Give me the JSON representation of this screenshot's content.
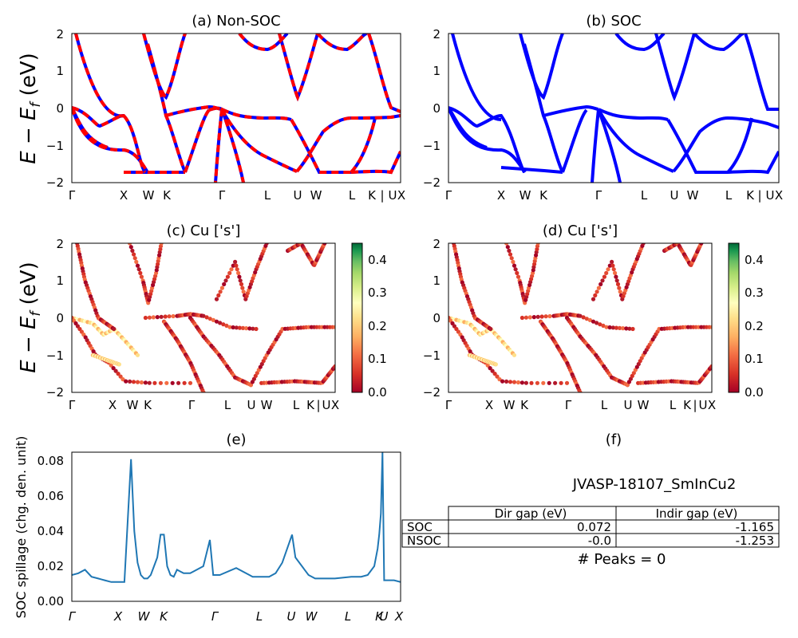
{
  "shared": {
    "kpath_labels": [
      "Γ",
      "X",
      "W",
      "K",
      "Γ",
      "L",
      "U",
      "W",
      "L",
      "K",
      "|",
      "U",
      "X"
    ],
    "energy_ylabel_text": "E − E",
    "energy_ylabel_sub": "f",
    "energy_ylabel_unit": " (eV)",
    "ylim": [
      -2,
      2
    ],
    "yticks": [
      "2",
      "1",
      "0",
      "−1",
      "−2"
    ]
  },
  "chart_data": [
    {
      "type": "line",
      "panel": "a",
      "title": "(a) Non-SOC",
      "ylabel": "E − E_f (eV)",
      "ylim": [
        -2,
        2
      ],
      "series": [
        {
          "name": "",
          "color": "#0000ff",
          "style": "solid"
        },
        {
          "name": "",
          "color": "#ff0000",
          "style": "dashed"
        }
      ]
    },
    {
      "type": "line",
      "panel": "b",
      "title": "(b) SOC",
      "ylim": [
        -2,
        2
      ],
      "series": [
        {
          "name": "",
          "color": "#0000ff"
        }
      ]
    },
    {
      "type": "scatter",
      "panel": "c",
      "title": "(c)  Cu ['s']",
      "ylabel": "E − E_f (eV)",
      "ylim": [
        -2,
        2
      ],
      "colorbar": {
        "colormap": "RdYlGn",
        "min": 0.0,
        "max": 0.45,
        "ticks": [
          "0.0",
          "0.1",
          "0.2",
          "0.3",
          "0.4"
        ]
      }
    },
    {
      "type": "scatter",
      "panel": "d",
      "title": "(d) Cu ['s']",
      "ylim": [
        -2,
        2
      ],
      "colorbar": {
        "colormap": "RdYlGn",
        "min": 0.0,
        "max": 0.45,
        "ticks": [
          "0.0",
          "0.1",
          "0.2",
          "0.3",
          "0.4"
        ]
      }
    },
    {
      "type": "line",
      "panel": "e",
      "title": "(e)",
      "ylabel": "SOC spillage (chg. den. unit)",
      "ylim": [
        0,
        0.085
      ],
      "yticks": [
        "0.00",
        "0.02",
        "0.04",
        "0.06",
        "0.08"
      ],
      "xtick_labels": [
        "Γ",
        "X",
        "W",
        "K",
        "Γ",
        "L",
        "U",
        "W",
        "L",
        "K",
        "U",
        "X"
      ],
      "series": [
        {
          "name": "",
          "color": "#1f77b4",
          "x": [
            0,
            0.02,
            0.04,
            0.06,
            0.08,
            0.1,
            0.12,
            0.14,
            0.16,
            0.18,
            0.19,
            0.2,
            0.21,
            0.22,
            0.23,
            0.24,
            0.25,
            0.26,
            0.27,
            0.28,
            0.29,
            0.3,
            0.31,
            0.32,
            0.33,
            0.34,
            0.36,
            0.37,
            0.38,
            0.4,
            0.42,
            0.44,
            0.43,
            0.45,
            0.5,
            0.54,
            0.55,
            0.555,
            0.56,
            0.57,
            0.6,
            0.62,
            0.64,
            0.67,
            0.68,
            0.72,
            0.74,
            0.745,
            0.75,
            0.76,
            0.8,
            0.85,
            0.88,
            0.9,
            0.92,
            0.93,
            0.935,
            0.94,
            0.945,
            0.95,
            0.98,
            1.0
          ],
          "y": [
            0.015,
            0.016,
            0.018,
            0.014,
            0.013,
            0.012,
            0.011,
            0.011,
            0.011,
            0.081,
            0.04,
            0.022,
            0.015,
            0.013,
            0.013,
            0.015,
            0.02,
            0.025,
            0.038,
            0.038,
            0.02,
            0.015,
            0.014,
            0.018,
            0.017,
            0.016,
            0.016,
            0.017,
            0.018,
            0.02,
            0.035,
            0.015,
            0.015,
            0.015,
            0.019,
            0.015,
            0.014,
            0.014,
            0.014,
            0.014,
            0.014,
            0.016,
            0.022,
            0.038,
            0.025,
            0.015,
            0.013,
            0.013,
            0.013,
            0.013,
            0.013,
            0.014,
            0.014,
            0.015,
            0.02,
            0.03,
            0.038,
            0.05,
            0.085,
            0.012,
            0.012,
            0.011
          ]
        }
      ]
    },
    {
      "type": "table",
      "panel": "f",
      "title": "(f)",
      "caption": "JVASP-18107_SmInCu2",
      "columns": [
        "Dir gap (eV)",
        "Indir gap (eV)"
      ],
      "rows": [
        {
          "label": "SOC",
          "values": [
            "0.072",
            "-1.165"
          ]
        },
        {
          "label": "NSOC",
          "values": [
            "-0.0",
            "-1.253"
          ]
        }
      ],
      "footer": "# Peaks = 0"
    }
  ]
}
